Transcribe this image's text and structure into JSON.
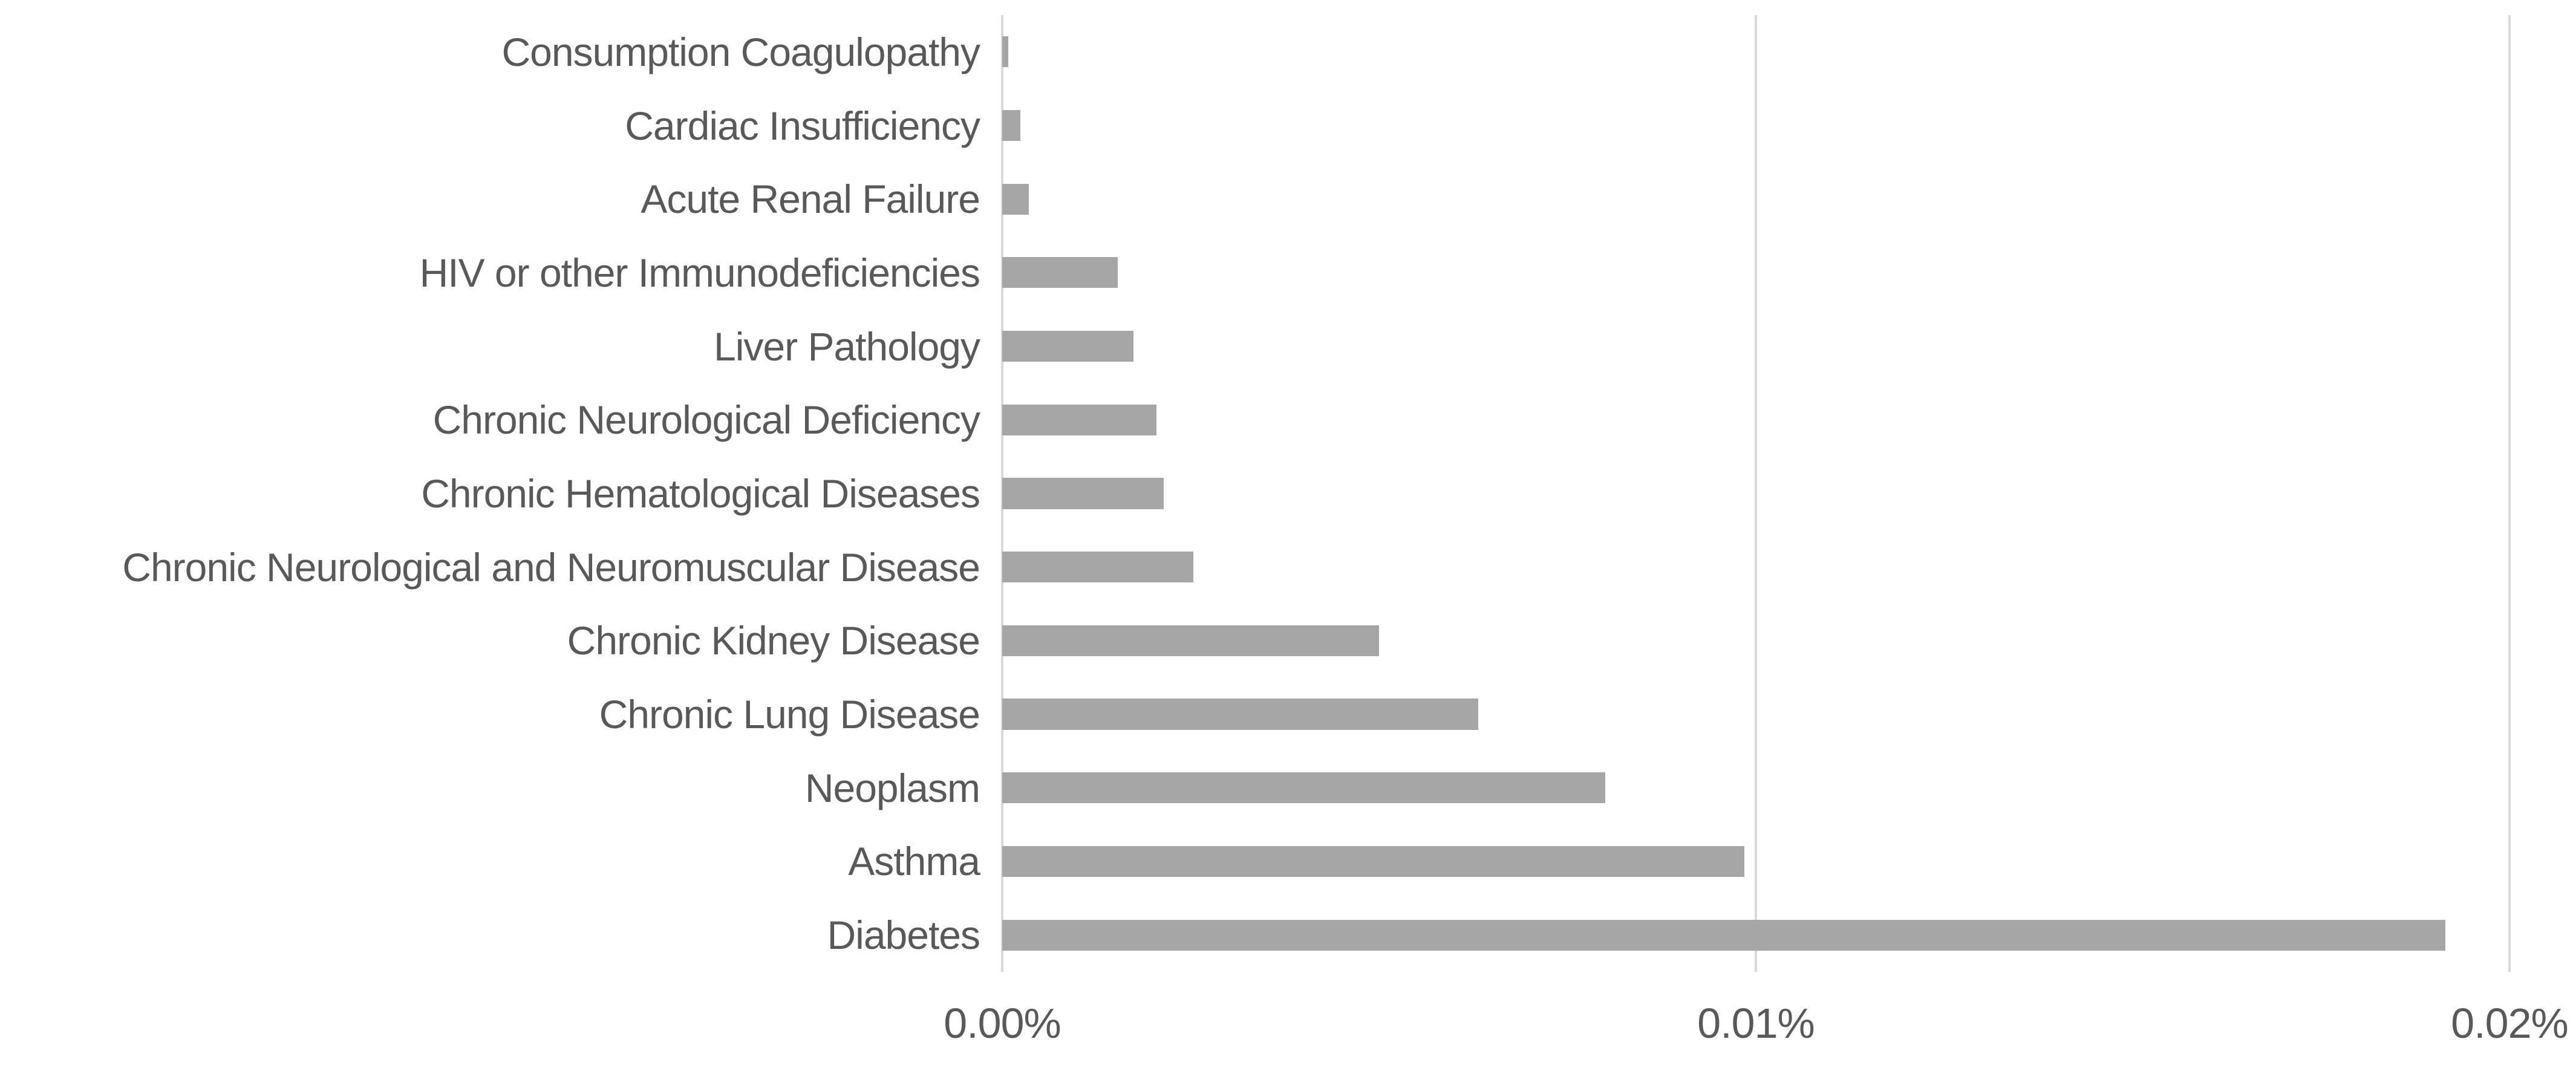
{
  "chart_data": {
    "type": "bar",
    "orientation": "horizontal",
    "title": "",
    "categories": [
      "Consumption Coagulopathy",
      "Cardiac Insufficiency",
      "Acute Renal Failure",
      "HIV or other Immunodeficiencies",
      "Liver Pathology",
      "Chronic Neurological Deficiency",
      "Chronic Hematological Diseases",
      "Chronic Neurological and Neuromuscular Disease",
      "Chronic Kidney Disease",
      "Chronic Lung Disease",
      "Neoplasm",
      "Asthma",
      "Diabetes"
    ],
    "values": [
      8e-05,
      0.00024,
      0.00035,
      0.00153,
      0.00174,
      0.00205,
      0.00214,
      0.00254,
      0.005,
      0.00632,
      0.008,
      0.00985,
      0.01915
    ],
    "value_unit": "percent",
    "xlabel": "",
    "ylabel": "",
    "xlim": [
      0,
      0.02
    ],
    "x_ticks": [
      "0.00%",
      "0.01%",
      "0.02%"
    ],
    "x_tick_values": [
      0,
      0.01,
      0.02
    ],
    "grid": "vertical gridlines at each x tick",
    "legend": "none",
    "bar_color": "#a6a6a6",
    "gridline_color": "#d9d9d9",
    "text_color": "#595959",
    "background_color": "#ffffff"
  }
}
